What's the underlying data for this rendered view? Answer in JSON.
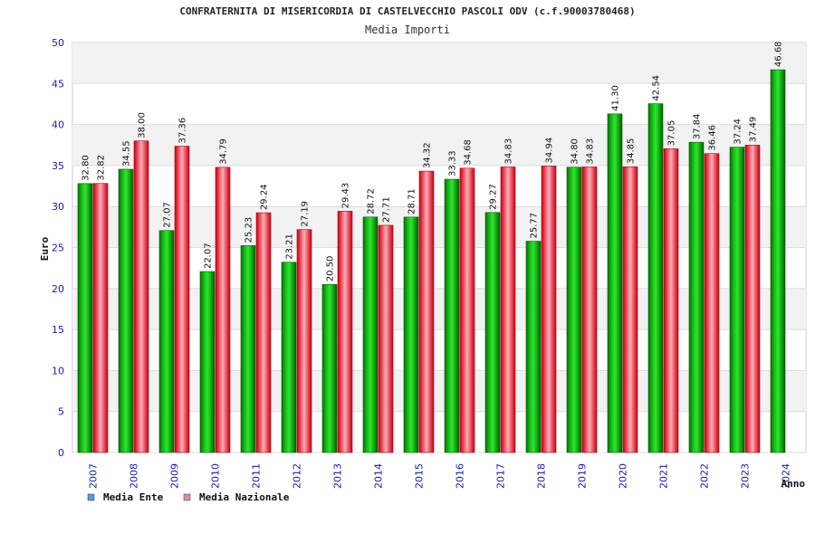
{
  "chart_data": {
    "type": "bar",
    "title": "CONFRATERNITA DI MISERICORDIA DI CASTELVECCHIO PASCOLI ODV (c.f.90003780468)",
    "subtitle": "Media Importi",
    "ylabel": "Euro",
    "xlabel": "Anno",
    "ylim": [
      0,
      50
    ],
    "yticks": [
      0,
      5,
      10,
      15,
      20,
      25,
      30,
      35,
      40,
      45,
      50
    ],
    "categories": [
      "2007",
      "2008",
      "2009",
      "2010",
      "2011",
      "2012",
      "2013",
      "2014",
      "2015",
      "2016",
      "2017",
      "2018",
      "2019",
      "2020",
      "2021",
      "2022",
      "2023",
      "2024"
    ],
    "series": [
      {
        "name": "Media Ente",
        "legend_color": "#5b9bd5",
        "values": [
          32.8,
          34.55,
          27.07,
          22.07,
          25.23,
          23.21,
          20.5,
          28.72,
          28.71,
          33.33,
          29.27,
          25.77,
          34.8,
          41.3,
          42.54,
          37.84,
          37.24,
          46.68
        ],
        "labels": [
          "32.80",
          "34.55",
          "27.07",
          "22.07",
          "25.23",
          "23.21",
          "20.50",
          "28.72",
          "28.71",
          "33.33",
          "29.27",
          "25.77",
          "34.80",
          "41.30",
          "42.54",
          "37.84",
          "37.24",
          "46.68"
        ]
      },
      {
        "name": "Media Nazionale",
        "legend_color": "#d98cb3",
        "values": [
          32.82,
          38.0,
          37.36,
          34.79,
          29.24,
          27.19,
          29.43,
          27.71,
          34.32,
          34.68,
          34.83,
          34.94,
          34.83,
          34.85,
          37.05,
          36.46,
          37.49,
          null
        ],
        "labels": [
          "32.82",
          "38.00",
          "37.36",
          "34.79",
          "29.24",
          "27.19",
          "29.43",
          "27.71",
          "34.32",
          "34.68",
          "34.83",
          "34.94",
          "34.83",
          "34.85",
          "37.05",
          "36.46",
          "37.49",
          null
        ]
      }
    ],
    "grid": true,
    "legend_position": "bottom-left"
  }
}
